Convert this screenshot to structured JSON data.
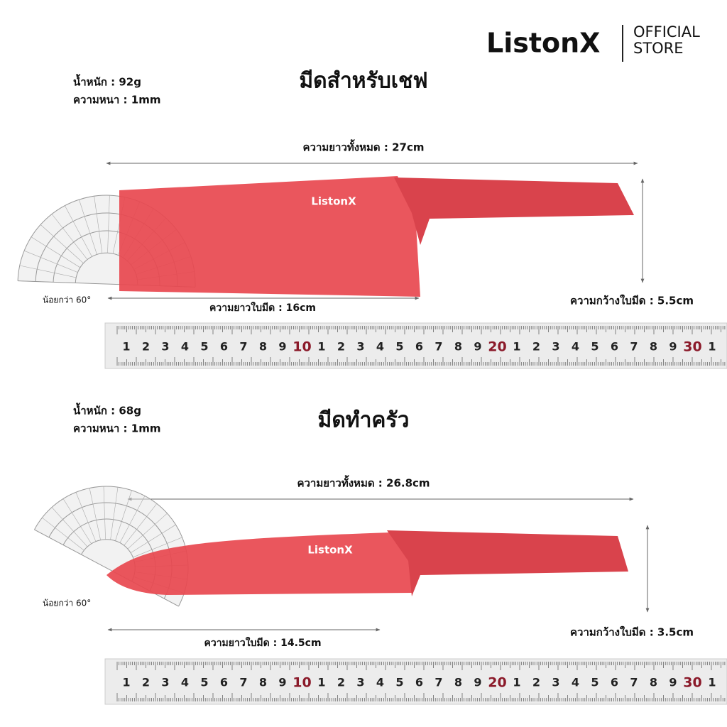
{
  "header": {
    "brand": "ListonX",
    "store_line1": "OFFICIAL",
    "store_line2": "STORE"
  },
  "knives": [
    {
      "title": "มีดสำหรับเชฟ",
      "weight": "น้ำหนัก : 92g",
      "thickness": "ความหนา : 1mm",
      "total_length": "ความยาวทั้งหมด : 27cm",
      "angle": "น้อยกว่า 60°",
      "blade_length": "ความยาวใบมีด : 16cm",
      "blade_width": "ความกว้างใบมีด : 5.5cm",
      "blade_logo": "ListonX"
    },
    {
      "title": "มีดทำครัว",
      "weight": "น้ำหนัก : 68g",
      "thickness": "ความหนา : 1mm",
      "total_length": "ความยาวทั้งหมด : 26.8cm",
      "angle": "น้อยกว่า 60°",
      "blade_length": "ความยาวใบมีด : 14.5cm",
      "blade_width": "ความกว้างใบมีด : 3.5cm",
      "blade_logo": "ListonX"
    }
  ],
  "ruler_labels": [
    "1",
    "2",
    "3",
    "4",
    "5",
    "6",
    "7",
    "8",
    "9",
    "10",
    "1",
    "2",
    "3",
    "4",
    "5",
    "6",
    "7",
    "8",
    "9",
    "20",
    "1",
    "2",
    "3",
    "4",
    "5",
    "6",
    "7",
    "8",
    "9",
    "30",
    "1"
  ]
}
